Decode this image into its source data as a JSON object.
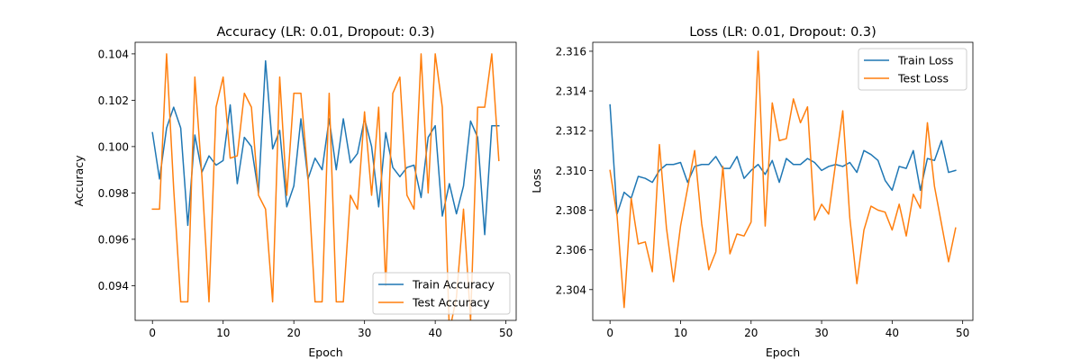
{
  "chart_data": [
    {
      "type": "line",
      "title": "Accuracy (LR: 0.01, Dropout: 0.3)",
      "xlabel": "Epoch",
      "ylabel": "Accuracy",
      "xlim": [
        -2.45,
        51.45
      ],
      "ylim": [
        0.0925,
        0.1045
      ],
      "xticks": [
        0,
        10,
        20,
        30,
        40,
        50
      ],
      "xtick_labels": [
        "0",
        "10",
        "20",
        "30",
        "40",
        "50"
      ],
      "yticks": [
        0.094,
        0.096,
        0.098,
        0.1,
        0.102,
        0.104
      ],
      "ytick_labels": [
        "0.094",
        "0.096",
        "0.098",
        "0.100",
        "0.102",
        "0.104"
      ],
      "grid": false,
      "legend_position": "lower right",
      "x": [
        0,
        1,
        2,
        3,
        4,
        5,
        6,
        7,
        8,
        9,
        10,
        11,
        12,
        13,
        14,
        15,
        16,
        17,
        18,
        19,
        20,
        21,
        22,
        23,
        24,
        25,
        26,
        27,
        28,
        29,
        30,
        31,
        32,
        33,
        34,
        35,
        36,
        37,
        38,
        39,
        40,
        41,
        42,
        43,
        44,
        45,
        46,
        47,
        48,
        49
      ],
      "series": [
        {
          "name": "Train Accuracy",
          "color": "#1f77b4",
          "values": [
            0.1006,
            0.0986,
            0.1008,
            0.1017,
            0.1008,
            0.0966,
            0.1005,
            0.0989,
            0.0996,
            0.0992,
            0.0994,
            0.1018,
            0.0984,
            0.1004,
            0.1,
            0.098,
            0.1037,
            0.0999,
            0.1007,
            0.0974,
            0.0983,
            0.1012,
            0.0986,
            0.0995,
            0.099,
            0.1012,
            0.099,
            0.1012,
            0.0993,
            0.0997,
            0.1012,
            0.1,
            0.0974,
            0.1006,
            0.0991,
            0.0987,
            0.0991,
            0.0992,
            0.0978,
            0.1004,
            0.1009,
            0.097,
            0.0984,
            0.0971,
            0.0983,
            0.1011,
            0.1004,
            0.0962,
            0.1009,
            0.1009
          ]
        },
        {
          "name": "Test Accuracy",
          "color": "#ff7f0e",
          "values": [
            0.0973,
            0.0973,
            0.104,
            0.0982,
            0.0933,
            0.0933,
            0.103,
            0.0987,
            0.0933,
            0.1017,
            0.103,
            0.0995,
            0.0996,
            0.1023,
            0.1017,
            0.0979,
            0.0973,
            0.0933,
            0.103,
            0.0979,
            0.1023,
            0.1023,
            0.0987,
            0.0933,
            0.0933,
            0.1023,
            0.0933,
            0.0933,
            0.0979,
            0.0973,
            0.1015,
            0.0979,
            0.1017,
            0.094,
            0.1023,
            0.103,
            0.0979,
            0.0973,
            0.104,
            0.098,
            0.104,
            0.1017,
            0.092,
            0.0935,
            0.0973,
            0.0925,
            0.1017,
            0.1017,
            0.104,
            0.0994
          ]
        }
      ]
    },
    {
      "type": "line",
      "title": "Loss (LR: 0.01, Dropout: 0.3)",
      "xlabel": "Epoch",
      "ylabel": "Loss",
      "xlim": [
        -2.45,
        51.45
      ],
      "ylim": [
        2.30245,
        2.31645
      ],
      "xticks": [
        0,
        10,
        20,
        30,
        40,
        50
      ],
      "xtick_labels": [
        "0",
        "10",
        "20",
        "30",
        "40",
        "50"
      ],
      "yticks": [
        2.304,
        2.306,
        2.308,
        2.31,
        2.312,
        2.314,
        2.316
      ],
      "ytick_labels": [
        "2.304",
        "2.306",
        "2.308",
        "2.310",
        "2.312",
        "2.314",
        "2.316"
      ],
      "grid": false,
      "legend_position": "upper right",
      "x": [
        0,
        1,
        2,
        3,
        4,
        5,
        6,
        7,
        8,
        9,
        10,
        11,
        12,
        13,
        14,
        15,
        16,
        17,
        18,
        19,
        20,
        21,
        22,
        23,
        24,
        25,
        26,
        27,
        28,
        29,
        30,
        31,
        32,
        33,
        34,
        35,
        36,
        37,
        38,
        39,
        40,
        41,
        42,
        43,
        44,
        45,
        46,
        47,
        48,
        49
      ],
      "series": [
        {
          "name": "Train Loss",
          "color": "#1f77b4",
          "values": [
            2.3133,
            2.3078,
            2.3089,
            2.3086,
            2.3097,
            2.3096,
            2.3094,
            2.31,
            2.3103,
            2.3103,
            2.3104,
            2.3094,
            2.3102,
            2.3103,
            2.3103,
            2.3107,
            2.3101,
            2.3101,
            2.3107,
            2.3096,
            2.31,
            2.3103,
            2.3098,
            2.3105,
            2.3094,
            2.3106,
            2.3103,
            2.3103,
            2.3106,
            2.3104,
            2.31,
            2.3102,
            2.3103,
            2.3102,
            2.3104,
            2.3099,
            2.311,
            2.3108,
            2.3105,
            2.3095,
            2.309,
            2.3102,
            2.3101,
            2.311,
            2.309,
            2.3106,
            2.3105,
            2.3115,
            2.3099,
            2.31
          ]
        },
        {
          "name": "Test Loss",
          "color": "#ff7f0e",
          "values": [
            2.31,
            2.3077,
            2.3031,
            2.3086,
            2.3063,
            2.3064,
            2.3049,
            2.3113,
            2.3071,
            2.3044,
            2.3072,
            2.3091,
            2.311,
            2.3073,
            2.305,
            2.3059,
            2.3102,
            2.3058,
            2.3068,
            2.3067,
            2.3074,
            2.316,
            2.3072,
            2.3134,
            2.3115,
            2.3116,
            2.3136,
            2.3124,
            2.3132,
            2.3075,
            2.3083,
            2.3078,
            2.3104,
            2.313,
            2.3076,
            2.3043,
            2.307,
            2.3082,
            2.308,
            2.3079,
            2.307,
            2.3083,
            2.3067,
            2.3088,
            2.3081,
            2.3124,
            2.3092,
            2.3073,
            2.3054,
            2.3071
          ]
        }
      ]
    }
  ]
}
